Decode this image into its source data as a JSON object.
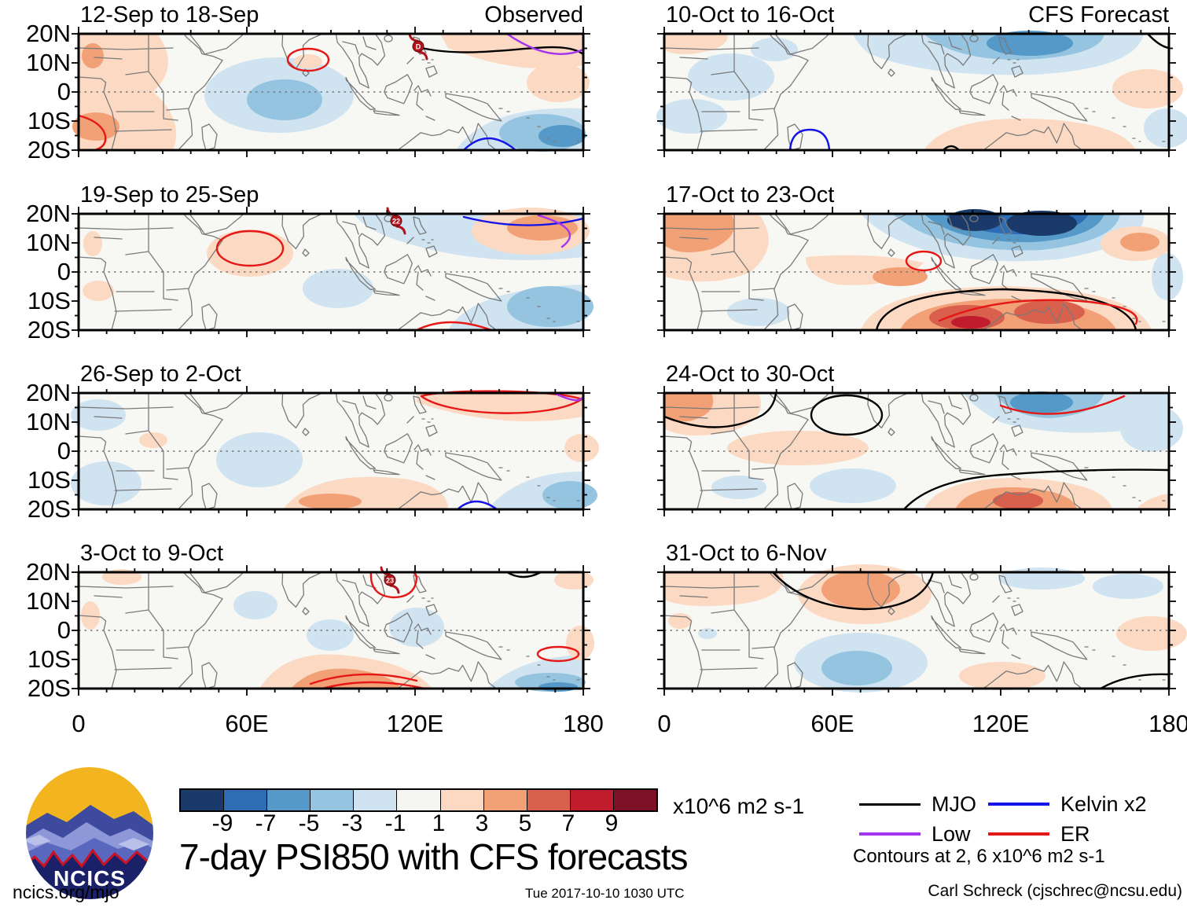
{
  "page": {
    "background": "#ffffff"
  },
  "panels": [
    {
      "title": "12-Sep to 18-Sep",
      "corner": "Observed",
      "storm_label": "D"
    },
    {
      "title": "19-Sep to 25-Sep",
      "corner": "",
      "storm_label": "22"
    },
    {
      "title": "26-Sep to 2-Oct",
      "corner": "",
      "storm_label": ""
    },
    {
      "title": "3-Oct to 9-Oct",
      "corner": "",
      "storm_label": "23"
    },
    {
      "title": "10-Oct to 16-Oct",
      "corner": "CFS Forecast",
      "storm_label": ""
    },
    {
      "title": "17-Oct to 23-Oct",
      "corner": "",
      "storm_label": ""
    },
    {
      "title": "24-Oct to 30-Oct",
      "corner": "",
      "storm_label": ""
    },
    {
      "title": "31-Oct to 6-Nov",
      "corner": "",
      "storm_label": ""
    }
  ],
  "axes": {
    "y_labels": [
      "20N",
      "10N",
      "0",
      "10S",
      "20S"
    ],
    "x_labels": [
      "0",
      "60E",
      "120E",
      "180"
    ]
  },
  "colorbar": {
    "tick_labels": [
      "-9",
      "-7",
      "-5",
      "-3",
      "-1",
      "1",
      "3",
      "5",
      "7",
      "9"
    ],
    "colors": [
      "#1a3a6a",
      "#2e6db4",
      "#5599c8",
      "#94c4df",
      "#cfe3f0",
      "#f5f6f2",
      "#fcd9c2",
      "#f2a176",
      "#d9604c",
      "#c01c2d",
      "#7c1128"
    ],
    "unit": "x10^6 m2 s-1"
  },
  "main_title": "7-day PSI850 with CFS forecasts",
  "legend": {
    "items": [
      {
        "label": "MJO",
        "color": "#000000"
      },
      {
        "label": "Low",
        "color": "#a335f0"
      },
      {
        "label": "Kelvin x2",
        "color": "#1414e8"
      },
      {
        "label": "ER",
        "color": "#e61717"
      }
    ],
    "note": "Contours at 2, 6 x10^6 m2 s-1"
  },
  "branding": {
    "logo_text": "NCICS",
    "link": "ncics.org/mjo"
  },
  "footer": {
    "timestamp": "Tue 2017-10-10 1030 UTC",
    "credit": "Carl Schreck (cjschrec@ncsu.edu)"
  },
  "chart_data": {
    "type": "heatmap",
    "title": "7-day PSI850 with CFS forecasts",
    "variable": "850-hPa streamfunction anomaly (PSI850)",
    "units": "x10^6 m2 s-1",
    "fill_levels": [
      -9,
      -7,
      -5,
      -3,
      -1,
      1,
      3,
      5,
      7,
      9
    ],
    "contour_note": "Contours at 2, 6 x10^6 m2 s-1",
    "contour_series": [
      "MJO (black)",
      "Low (purple)",
      "Kelvin x2 (blue)",
      "ER (red)"
    ],
    "x_axis": {
      "ticks": [
        "0",
        "60E",
        "120E",
        "180"
      ],
      "lon_range": [
        0,
        180
      ]
    },
    "y_axis": {
      "ticks": [
        "20N",
        "10N",
        "0",
        "10S",
        "20S"
      ],
      "lat_range": [
        -20,
        20
      ]
    },
    "panel_grid": {
      "rows": 4,
      "cols": 2,
      "left_column": "Observed",
      "right_column": "CFS Forecast"
    },
    "panels": [
      {
        "title": "12-Sep to 18-Sep",
        "source": "Observed",
        "features": [
          {
            "desc": "negative anomaly SW Pacific near 165E 15S",
            "value": -5
          },
          {
            "desc": "weak negative central Indian Ocean near 70E equator",
            "value": -2
          },
          {
            "desc": "positive anomaly over Africa and 150-180E 10-20N with Low and MJO contours",
            "value": 2
          },
          {
            "desc": "tropical cyclone D near Luzon 122E 17N",
            "value": null
          }
        ]
      },
      {
        "title": "19-Sep to 25-Sep",
        "source": "Observed",
        "features": [
          {
            "desc": "negative anomaly SW Pacific near 165E 10S",
            "value": -3
          },
          {
            "desc": "positive anomaly 150-180E 15-20N with Kelvin and Low contours",
            "value": 4
          },
          {
            "desc": "weak positive 60E 3N enclosed by ER contour",
            "value": 2
          },
          {
            "desc": "tropical cyclone 22 near 113E 19N",
            "value": null
          }
        ]
      },
      {
        "title": "26-Sep to 2-Oct",
        "source": "Observed",
        "features": [
          {
            "desc": "ER contour loop 125-165E 10-20N over weak positive",
            "value": 2
          },
          {
            "desc": "weak negative far SE corner near 170E 15S",
            "value": -3
          },
          {
            "desc": "weak positive band near 90E 15S",
            "value": 2
          }
        ]
      },
      {
        "title": "3-Oct to 9-Oct",
        "source": "Observed",
        "features": [
          {
            "desc": "positive band 80-100E 5-20S with ER contours",
            "value": 3
          },
          {
            "desc": "tropical cyclone 23 near Hainan 110E 19N inside ER loop",
            "value": null
          },
          {
            "desc": "weak negative east of 150E south of equator",
            "value": -2
          }
        ]
      },
      {
        "title": "10-Oct to 16-Oct",
        "source": "CFS Forecast",
        "features": [
          {
            "desc": "negative anomaly Bay of Bengal to SCS 90-130E 10-20N",
            "value": -5
          },
          {
            "desc": "weak positive Indonesia to central Pacific",
            "value": 2
          },
          {
            "desc": "Kelvin contour near 52E 20S, MJO contour NE corner",
            "value": null
          }
        ]
      },
      {
        "title": "17-Oct to 23-Oct",
        "source": "CFS Forecast",
        "features": [
          {
            "desc": "strong negative 100-135E north of 10N",
            "value": -9
          },
          {
            "desc": "strong positive N Australia 110-140E 15-20S with MJO and ER contours",
            "value": 7
          },
          {
            "desc": "positive NE Africa",
            "value": 3
          },
          {
            "desc": "small ER contour near 92E equator",
            "value": 2
          }
        ]
      },
      {
        "title": "24-Oct to 30-Oct",
        "source": "CFS Forecast",
        "features": [
          {
            "desc": "negative near Philippines 120-135E 10-18N with ER contour",
            "value": -5
          },
          {
            "desc": "positive N Australia near 118E 18S with MJO contour",
            "value": 7
          },
          {
            "desc": "MJO contours NW Indian Ocean and NE Africa positive",
            "value": 4
          }
        ]
      },
      {
        "title": "31-Oct to 6-Nov",
        "source": "CFS Forecast",
        "features": [
          {
            "desc": "positive over India near 78E 12N with MJO contour",
            "value": 5
          },
          {
            "desc": "negative central S Indian Ocean near 70E 12S",
            "value": -4
          },
          {
            "desc": "weak positives W Pacific, MJO contour SE corner",
            "value": 2
          }
        ]
      }
    ]
  }
}
